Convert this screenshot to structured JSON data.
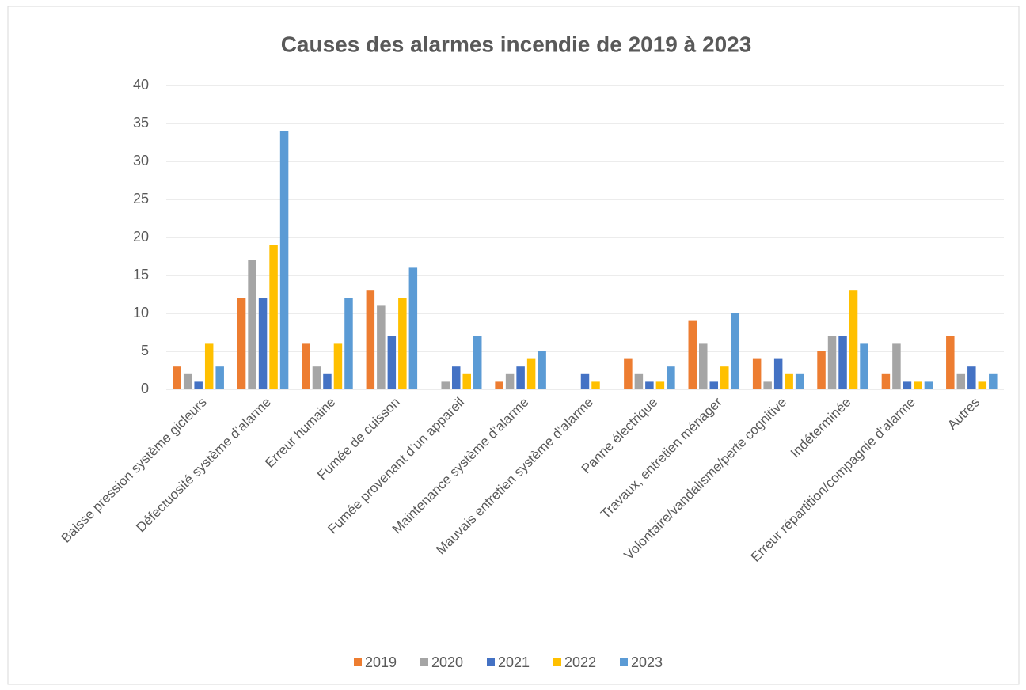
{
  "chart_data": {
    "type": "bar",
    "title": "Causes des alarmes incendie de 2019 à 2023",
    "categories": [
      "Baisse pression système gicleurs",
      "Défectuosité système d’alarme",
      "Erreur humaine",
      "Fumée de cuisson",
      "Fumée provenant d’un appareil",
      "Maintenance système d’alarme",
      "Mauvais entretien système d’alarme",
      "Panne électrique",
      "Travaux, entretien ménager",
      "Volontaire/vandalisme/perte cognitive",
      "Indéterminée",
      "Erreur répartition/compagnie d’alarme",
      "Autres"
    ],
    "series": [
      {
        "name": "2019",
        "color": "#ed7d31",
        "values": [
          3,
          12,
          6,
          13,
          0,
          1,
          0,
          4,
          9,
          4,
          5,
          2,
          7
        ]
      },
      {
        "name": "2020",
        "color": "#a5a5a5",
        "values": [
          2,
          17,
          3,
          11,
          1,
          2,
          0,
          2,
          6,
          1,
          7,
          6,
          2
        ]
      },
      {
        "name": "2021",
        "color": "#4472c4",
        "values": [
          1,
          12,
          2,
          7,
          3,
          3,
          2,
          1,
          1,
          4,
          7,
          1,
          3
        ]
      },
      {
        "name": "2022",
        "color": "#ffc000",
        "values": [
          6,
          19,
          6,
          12,
          2,
          4,
          1,
          1,
          3,
          2,
          13,
          1,
          1
        ]
      },
      {
        "name": "2023",
        "color": "#5b9bd5",
        "values": [
          3,
          34,
          12,
          16,
          7,
          5,
          0,
          3,
          10,
          2,
          6,
          1,
          2
        ]
      }
    ],
    "ylim": [
      0,
      40
    ],
    "yticks": [
      0,
      5,
      10,
      15,
      20,
      25,
      30,
      35,
      40
    ],
    "grid": true,
    "legend": "bottom"
  }
}
